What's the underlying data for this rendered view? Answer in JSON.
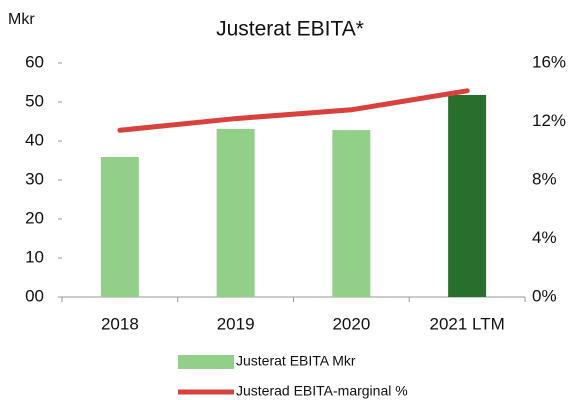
{
  "chart_data": {
    "type": "bar-line",
    "title": "Justerat EBITA*",
    "y_label": "Mkr",
    "categories": [
      "2018",
      "2019",
      "2020",
      "2021 LTM"
    ],
    "series": [
      {
        "name": "Justerat EBITA Mkr",
        "type": "bar",
        "color": "#92d08a",
        "colors": [
          "#92d08a",
          "#92d08a",
          "#92d08a",
          "#2a6e2e"
        ],
        "values": [
          35.9,
          43.1,
          42.8,
          51.8
        ]
      },
      {
        "name": "Justerad EBITA-marginal %",
        "type": "line",
        "axis": "y2",
        "color": "#d9413c",
        "values": [
          11.4,
          12.2,
          12.8,
          14.1
        ]
      }
    ],
    "ylim": [
      0,
      60
    ],
    "yticks": [
      {
        "value": 0,
        "label": "00"
      },
      10,
      20,
      30,
      40,
      50,
      60
    ],
    "y2lim": [
      0,
      16
    ],
    "y2ticks": [
      {
        "value": 0,
        "label": "0%"
      },
      {
        "value": 4,
        "label": "4%"
      },
      {
        "value": 8,
        "label": "8%"
      },
      {
        "value": 12,
        "label": "12%"
      },
      {
        "value": 16,
        "label": "16%"
      }
    ],
    "grid": false
  }
}
